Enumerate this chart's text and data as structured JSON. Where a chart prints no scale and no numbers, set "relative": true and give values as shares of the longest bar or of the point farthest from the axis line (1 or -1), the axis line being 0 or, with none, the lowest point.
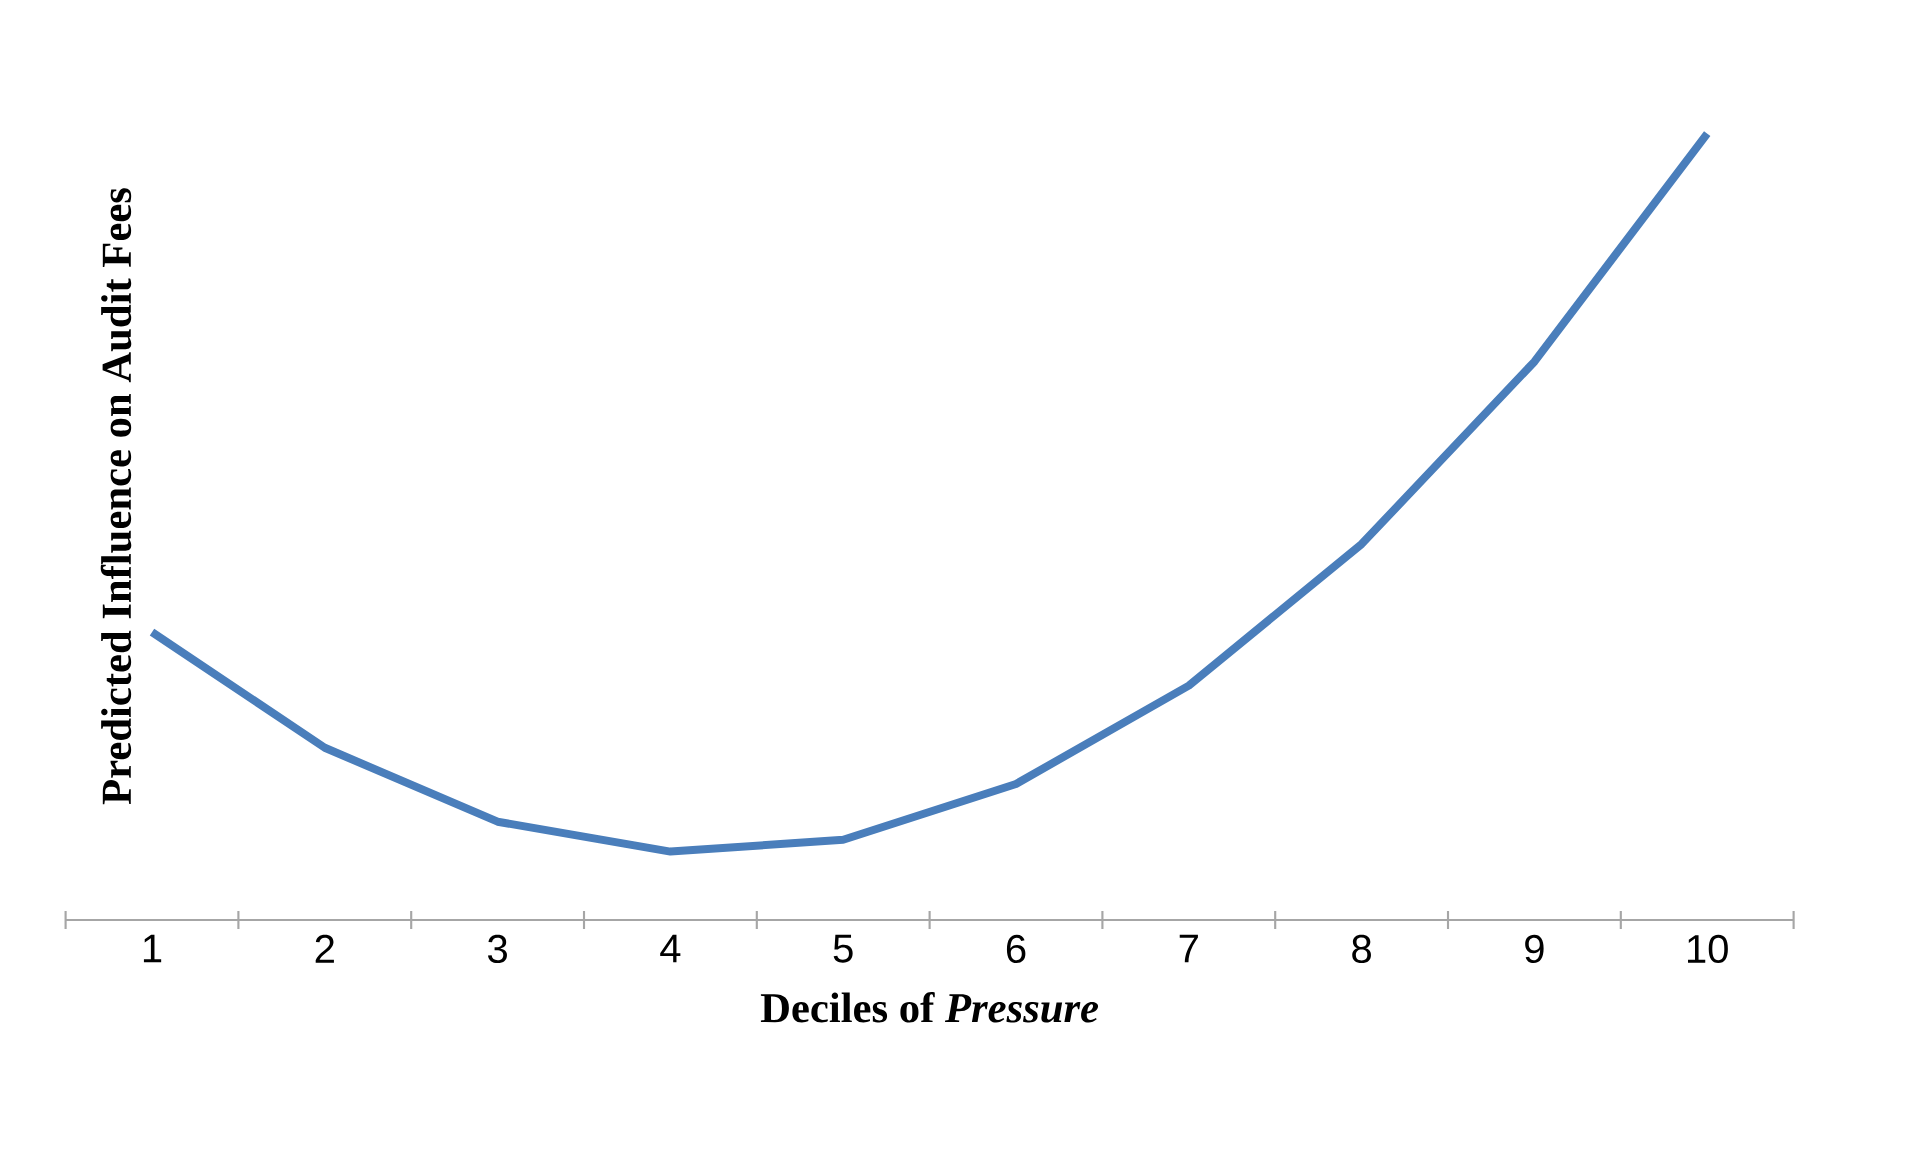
{
  "chart_data": {
    "type": "line",
    "xlabel": "Deciles of *Pressure*",
    "ylabel": "Predicted Influence on Audit Fees",
    "relative": true,
    "categories": [
      "1",
      "2",
      "3",
      "4",
      "5",
      "6",
      "7",
      "8",
      "9",
      "10"
    ],
    "series": [
      {
        "color": "#4a7ebb",
        "values": [
          0.366,
          0.219,
          0.125,
          0.087,
          0.102,
          0.173,
          0.298,
          0.478,
          0.71,
          1.0
        ]
      }
    ]
  }
}
